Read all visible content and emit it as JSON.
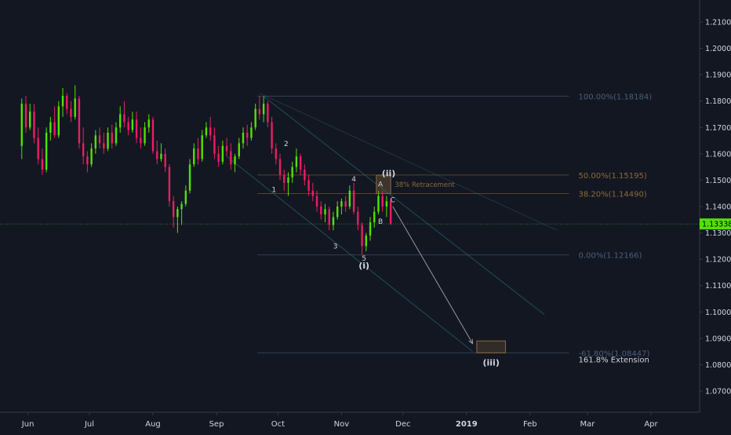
{
  "chart_data": {
    "type": "candlestick",
    "title": "",
    "xlabel": "",
    "ylabel": "",
    "ylim": [
      1.0633,
      1.2255
    ],
    "grid": false,
    "colors": {
      "background": "#131722",
      "up": "#53e100",
      "down": "#e91e63",
      "axis_text": "#d1d4dc",
      "axis_line": "#363a45",
      "fib_text": "#4a5f7a",
      "fib_gold": "#8c6a3a",
      "channel": "#1d4f5a",
      "price_line": "#2e7d32",
      "price_label_bg": "#53e100",
      "wave_label": "#d1d4dc",
      "projection_arrow": "#9598a1"
    },
    "y_ticks": [
      "1.07000",
      "1.08000",
      "1.09000",
      "1.10000",
      "1.11000",
      "1.12000",
      "1.13000",
      "1.14000",
      "1.15000",
      "1.16000",
      "1.17000",
      "1.18000",
      "1.19000",
      "1.20000",
      "1.21000"
    ],
    "x_ticks": [
      {
        "label": "Jun",
        "bold": false
      },
      {
        "label": "Jul",
        "bold": false
      },
      {
        "label": "Aug",
        "bold": false
      },
      {
        "label": "Sep",
        "bold": false
      },
      {
        "label": "Oct",
        "bold": false
      },
      {
        "label": "Nov",
        "bold": false
      },
      {
        "label": "Dec",
        "bold": false
      },
      {
        "label": "2019",
        "bold": true
      },
      {
        "label": "Feb",
        "bold": false
      },
      {
        "label": "Mar",
        "bold": false
      },
      {
        "label": "Apr",
        "bold": false
      }
    ],
    "current_price": {
      "value": 1.13338,
      "label": "1.13338"
    },
    "fib_levels": [
      {
        "label": "100.00%(1.18184)",
        "value": 1.18184,
        "color": "fib_text"
      },
      {
        "label": "50.00%(1.15195)",
        "value": 1.15195,
        "color": "fib_gold"
      },
      {
        "label": "38.20%(1.14490)",
        "value": 1.1449,
        "color": "fib_gold"
      },
      {
        "label": "0.00%(1.12166)",
        "value": 1.12166,
        "color": "fib_text"
      },
      {
        "label": "-61.80%(1.08447)",
        "value": 1.08447,
        "color": "fib_text"
      }
    ],
    "annotations": [
      {
        "text": "38% Retracement",
        "color": "fib_gold",
        "kind": "note"
      },
      {
        "text": "161.8% Extension",
        "color": "axis_text",
        "kind": "note"
      }
    ],
    "wave_labels": [
      {
        "text": "1",
        "x": "2018-09-29",
        "y": 1.1455,
        "bold": false
      },
      {
        "text": "2",
        "x": "2018-10-05",
        "y": 1.163,
        "bold": false
      },
      {
        "text": "3",
        "x": "2018-10-29",
        "y": 1.124,
        "bold": false
      },
      {
        "text": "4",
        "x": "2018-11-07",
        "y": 1.1496,
        "bold": false
      },
      {
        "text": "5",
        "x": "2018-11-12",
        "y": 1.1195,
        "bold": false
      },
      {
        "text": "(i)",
        "x": "2018-11-12",
        "y": 1.1165,
        "bold": true
      },
      {
        "text": "A",
        "x": "2018-11-20",
        "y": 1.1476,
        "bold": false
      },
      {
        "text": "B",
        "x": "2018-11-20",
        "y": 1.1335,
        "bold": false
      },
      {
        "text": "C",
        "x": "2018-11-26",
        "y": 1.1417,
        "bold": false
      },
      {
        "text": "(ii)",
        "x": "2018-11-24",
        "y": 1.1514,
        "bold": true
      },
      {
        "text": "(iii)",
        "x": "2019-01-13",
        "y": 1.0797,
        "bold": true
      }
    ],
    "series": [
      {
        "date": "2018-05-29",
        "open": 1.163,
        "high": 1.181,
        "low": 1.158,
        "close": 1.179
      },
      {
        "date": "2018-05-31",
        "open": 1.179,
        "high": 1.182,
        "low": 1.168,
        "close": 1.17
      },
      {
        "date": "2018-06-02",
        "open": 1.17,
        "high": 1.179,
        "low": 1.169,
        "close": 1.176
      },
      {
        "date": "2018-06-04",
        "open": 1.176,
        "high": 1.179,
        "low": 1.164,
        "close": 1.166
      },
      {
        "date": "2018-06-06",
        "open": 1.166,
        "high": 1.17,
        "low": 1.156,
        "close": 1.158
      },
      {
        "date": "2018-06-08",
        "open": 1.158,
        "high": 1.162,
        "low": 1.152,
        "close": 1.154
      },
      {
        "date": "2018-06-10",
        "open": 1.154,
        "high": 1.17,
        "low": 1.153,
        "close": 1.168
      },
      {
        "date": "2018-06-12",
        "open": 1.168,
        "high": 1.174,
        "low": 1.165,
        "close": 1.172
      },
      {
        "date": "2018-06-14",
        "open": 1.172,
        "high": 1.178,
        "low": 1.166,
        "close": 1.167
      },
      {
        "date": "2018-06-16",
        "open": 1.167,
        "high": 1.18,
        "low": 1.166,
        "close": 1.178
      },
      {
        "date": "2018-06-18",
        "open": 1.178,
        "high": 1.185,
        "low": 1.174,
        "close": 1.182
      },
      {
        "date": "2018-06-20",
        "open": 1.182,
        "high": 1.183,
        "low": 1.175,
        "close": 1.177
      },
      {
        "date": "2018-06-22",
        "open": 1.177,
        "high": 1.18,
        "low": 1.172,
        "close": 1.174
      },
      {
        "date": "2018-06-24",
        "open": 1.174,
        "high": 1.186,
        "low": 1.173,
        "close": 1.181
      },
      {
        "date": "2018-06-26",
        "open": 1.181,
        "high": 1.182,
        "low": 1.162,
        "close": 1.164
      },
      {
        "date": "2018-06-28",
        "open": 1.164,
        "high": 1.17,
        "low": 1.156,
        "close": 1.159
      },
      {
        "date": "2018-06-30",
        "open": 1.159,
        "high": 1.161,
        "low": 1.153,
        "close": 1.156
      },
      {
        "date": "2018-07-02",
        "open": 1.156,
        "high": 1.164,
        "low": 1.155,
        "close": 1.162
      },
      {
        "date": "2018-07-04",
        "open": 1.162,
        "high": 1.169,
        "low": 1.16,
        "close": 1.167
      },
      {
        "date": "2018-07-06",
        "open": 1.167,
        "high": 1.17,
        "low": 1.162,
        "close": 1.164
      },
      {
        "date": "2018-07-08",
        "open": 1.164,
        "high": 1.168,
        "low": 1.16,
        "close": 1.162
      },
      {
        "date": "2018-07-10",
        "open": 1.162,
        "high": 1.17,
        "low": 1.161,
        "close": 1.168
      },
      {
        "date": "2018-07-12",
        "open": 1.168,
        "high": 1.171,
        "low": 1.162,
        "close": 1.164
      },
      {
        "date": "2018-07-14",
        "open": 1.164,
        "high": 1.172,
        "low": 1.163,
        "close": 1.17
      },
      {
        "date": "2018-07-16",
        "open": 1.17,
        "high": 1.178,
        "low": 1.168,
        "close": 1.175
      },
      {
        "date": "2018-07-18",
        "open": 1.175,
        "high": 1.18,
        "low": 1.17,
        "close": 1.172
      },
      {
        "date": "2018-07-20",
        "open": 1.172,
        "high": 1.174,
        "low": 1.167,
        "close": 1.169
      },
      {
        "date": "2018-07-22",
        "open": 1.169,
        "high": 1.176,
        "low": 1.168,
        "close": 1.173
      },
      {
        "date": "2018-07-24",
        "open": 1.173,
        "high": 1.176,
        "low": 1.164,
        "close": 1.166
      },
      {
        "date": "2018-07-26",
        "open": 1.166,
        "high": 1.17,
        "low": 1.162,
        "close": 1.164
      },
      {
        "date": "2018-07-28",
        "open": 1.164,
        "high": 1.172,
        "low": 1.163,
        "close": 1.17
      },
      {
        "date": "2018-07-30",
        "open": 1.17,
        "high": 1.175,
        "low": 1.168,
        "close": 1.173
      },
      {
        "date": "2018-08-01",
        "open": 1.173,
        "high": 1.174,
        "low": 1.16,
        "close": 1.161
      },
      {
        "date": "2018-08-03",
        "open": 1.161,
        "high": 1.165,
        "low": 1.156,
        "close": 1.158
      },
      {
        "date": "2018-08-05",
        "open": 1.158,
        "high": 1.164,
        "low": 1.157,
        "close": 1.16
      },
      {
        "date": "2018-08-07",
        "open": 1.16,
        "high": 1.162,
        "low": 1.153,
        "close": 1.155
      },
      {
        "date": "2018-08-09",
        "open": 1.155,
        "high": 1.156,
        "low": 1.14,
        "close": 1.142
      },
      {
        "date": "2018-08-11",
        "open": 1.142,
        "high": 1.144,
        "low": 1.132,
        "close": 1.136
      },
      {
        "date": "2018-08-13",
        "open": 1.136,
        "high": 1.14,
        "low": 1.13,
        "close": 1.139
      },
      {
        "date": "2018-08-15",
        "open": 1.139,
        "high": 1.142,
        "low": 1.133,
        "close": 1.141
      },
      {
        "date": "2018-08-17",
        "open": 1.141,
        "high": 1.148,
        "low": 1.14,
        "close": 1.146
      },
      {
        "date": "2018-08-19",
        "open": 1.146,
        "high": 1.158,
        "low": 1.145,
        "close": 1.156
      },
      {
        "date": "2018-08-21",
        "open": 1.156,
        "high": 1.164,
        "low": 1.155,
        "close": 1.162
      },
      {
        "date": "2018-08-23",
        "open": 1.162,
        "high": 1.166,
        "low": 1.156,
        "close": 1.158
      },
      {
        "date": "2018-08-25",
        "open": 1.158,
        "high": 1.169,
        "low": 1.157,
        "close": 1.167
      },
      {
        "date": "2018-08-27",
        "open": 1.167,
        "high": 1.172,
        "low": 1.166,
        "close": 1.17
      },
      {
        "date": "2018-08-29",
        "open": 1.17,
        "high": 1.174,
        "low": 1.165,
        "close": 1.167
      },
      {
        "date": "2018-08-31",
        "open": 1.167,
        "high": 1.17,
        "low": 1.158,
        "close": 1.16
      },
      {
        "date": "2018-09-02",
        "open": 1.16,
        "high": 1.163,
        "low": 1.155,
        "close": 1.157
      },
      {
        "date": "2018-09-04",
        "open": 1.157,
        "high": 1.165,
        "low": 1.156,
        "close": 1.163
      },
      {
        "date": "2018-09-06",
        "open": 1.163,
        "high": 1.166,
        "low": 1.159,
        "close": 1.161
      },
      {
        "date": "2018-09-08",
        "open": 1.161,
        "high": 1.164,
        "low": 1.154,
        "close": 1.156
      },
      {
        "date": "2018-09-10",
        "open": 1.156,
        "high": 1.16,
        "low": 1.153,
        "close": 1.159
      },
      {
        "date": "2018-09-12",
        "open": 1.159,
        "high": 1.166,
        "low": 1.158,
        "close": 1.164
      },
      {
        "date": "2018-09-14",
        "open": 1.164,
        "high": 1.17,
        "low": 1.162,
        "close": 1.168
      },
      {
        "date": "2018-09-16",
        "open": 1.168,
        "high": 1.171,
        "low": 1.163,
        "close": 1.166
      },
      {
        "date": "2018-09-18",
        "open": 1.166,
        "high": 1.172,
        "low": 1.165,
        "close": 1.17
      },
      {
        "date": "2018-09-20",
        "open": 1.17,
        "high": 1.179,
        "low": 1.169,
        "close": 1.177
      },
      {
        "date": "2018-09-22",
        "open": 1.177,
        "high": 1.182,
        "low": 1.173,
        "close": 1.175
      },
      {
        "date": "2018-09-24",
        "open": 1.175,
        "high": 1.1818,
        "low": 1.172,
        "close": 1.179
      },
      {
        "date": "2018-09-26",
        "open": 1.179,
        "high": 1.18,
        "low": 1.17,
        "close": 1.172
      },
      {
        "date": "2018-09-28",
        "open": 1.172,
        "high": 1.174,
        "low": 1.16,
        "close": 1.162
      },
      {
        "date": "2018-09-30",
        "open": 1.162,
        "high": 1.164,
        "low": 1.156,
        "close": 1.158
      },
      {
        "date": "2018-10-02",
        "open": 1.158,
        "high": 1.16,
        "low": 1.15,
        "close": 1.152
      },
      {
        "date": "2018-10-04",
        "open": 1.152,
        "high": 1.154,
        "low": 1.146,
        "close": 1.149
      },
      {
        "date": "2018-10-06",
        "open": 1.149,
        "high": 1.153,
        "low": 1.144,
        "close": 1.151
      },
      {
        "date": "2018-10-08",
        "open": 1.151,
        "high": 1.157,
        "low": 1.149,
        "close": 1.155
      },
      {
        "date": "2018-10-10",
        "open": 1.155,
        "high": 1.162,
        "low": 1.153,
        "close": 1.159
      },
      {
        "date": "2018-10-12",
        "open": 1.159,
        "high": 1.16,
        "low": 1.152,
        "close": 1.154
      },
      {
        "date": "2018-10-14",
        "open": 1.154,
        "high": 1.156,
        "low": 1.148,
        "close": 1.15
      },
      {
        "date": "2018-10-16",
        "open": 1.15,
        "high": 1.152,
        "low": 1.144,
        "close": 1.146
      },
      {
        "date": "2018-10-18",
        "open": 1.146,
        "high": 1.149,
        "low": 1.142,
        "close": 1.144
      },
      {
        "date": "2018-10-20",
        "open": 1.144,
        "high": 1.146,
        "low": 1.138,
        "close": 1.14
      },
      {
        "date": "2018-10-22",
        "open": 1.14,
        "high": 1.142,
        "low": 1.135,
        "close": 1.137
      },
      {
        "date": "2018-10-24",
        "open": 1.137,
        "high": 1.141,
        "low": 1.134,
        "close": 1.139
      },
      {
        "date": "2018-10-26",
        "open": 1.139,
        "high": 1.14,
        "low": 1.131,
        "close": 1.133
      },
      {
        "date": "2018-10-28",
        "open": 1.133,
        "high": 1.138,
        "low": 1.131,
        "close": 1.136
      },
      {
        "date": "2018-10-30",
        "open": 1.136,
        "high": 1.142,
        "low": 1.135,
        "close": 1.14
      },
      {
        "date": "2018-11-01",
        "open": 1.14,
        "high": 1.143,
        "low": 1.137,
        "close": 1.142
      },
      {
        "date": "2018-11-03",
        "open": 1.142,
        "high": 1.144,
        "low": 1.138,
        "close": 1.14
      },
      {
        "date": "2018-11-05",
        "open": 1.14,
        "high": 1.148,
        "low": 1.139,
        "close": 1.146
      },
      {
        "date": "2018-11-07",
        "open": 1.146,
        "high": 1.149,
        "low": 1.137,
        "close": 1.138
      },
      {
        "date": "2018-11-09",
        "open": 1.138,
        "high": 1.14,
        "low": 1.131,
        "close": 1.133
      },
      {
        "date": "2018-11-11",
        "open": 1.133,
        "high": 1.134,
        "low": 1.1217,
        "close": 1.125
      },
      {
        "date": "2018-11-13",
        "open": 1.125,
        "high": 1.13,
        "low": 1.123,
        "close": 1.129
      },
      {
        "date": "2018-11-15",
        "open": 1.129,
        "high": 1.136,
        "low": 1.127,
        "close": 1.134
      },
      {
        "date": "2018-11-17",
        "open": 1.134,
        "high": 1.14,
        "low": 1.132,
        "close": 1.138
      },
      {
        "date": "2018-11-19",
        "open": 1.138,
        "high": 1.146,
        "low": 1.137,
        "close": 1.144
      },
      {
        "date": "2018-11-21",
        "open": 1.144,
        "high": 1.146,
        "low": 1.138,
        "close": 1.14
      },
      {
        "date": "2018-11-23",
        "open": 1.14,
        "high": 1.144,
        "low": 1.136,
        "close": 1.142
      },
      {
        "date": "2018-11-25",
        "open": 1.142,
        "high": 1.143,
        "low": 1.133,
        "close": 1.1334
      }
    ]
  }
}
